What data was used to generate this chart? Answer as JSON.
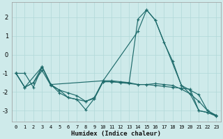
{
  "xlabel": "Humidex (Indice chaleur)",
  "bg_color": "#ceeaea",
  "line_color": "#1e6b6b",
  "grid_color": "#b0d8d8",
  "xlim": [
    -0.5,
    23.5
  ],
  "ylim": [
    -3.6,
    2.8
  ],
  "yticks": [
    -3,
    -2,
    -1,
    0,
    1,
    2
  ],
  "xticks": [
    0,
    1,
    2,
    3,
    4,
    5,
    6,
    7,
    8,
    9,
    10,
    11,
    12,
    13,
    14,
    15,
    16,
    17,
    18,
    19,
    20,
    21,
    22,
    23
  ],
  "series": [
    {
      "x": [
        0,
        1,
        2,
        3,
        4,
        5,
        6,
        7,
        8,
        9,
        10,
        11,
        12,
        13,
        14,
        15,
        16,
        17,
        18,
        19,
        20,
        21,
        22,
        23
      ],
      "y": [
        -1.0,
        -1.75,
        -1.5,
        -0.65,
        -1.6,
        -2.05,
        -2.3,
        -2.4,
        -2.95,
        -2.35,
        -1.45,
        -1.45,
        -1.5,
        -1.55,
        -1.6,
        -1.6,
        -1.65,
        -1.7,
        -1.75,
        -1.8,
        -1.85,
        -3.0,
        -3.1,
        -3.25
      ]
    },
    {
      "x": [
        0,
        1,
        2,
        3,
        4,
        5,
        6,
        7,
        8,
        9,
        10,
        11,
        12,
        13,
        14,
        15,
        16,
        17,
        18,
        19,
        20,
        21,
        22,
        23
      ],
      "y": [
        -1.0,
        -1.75,
        -1.5,
        -0.85,
        -1.65,
        -1.9,
        -2.05,
        -2.2,
        -2.5,
        -2.3,
        -1.4,
        -1.4,
        -1.45,
        -1.5,
        1.9,
        2.4,
        1.85,
        0.65,
        -0.35,
        -1.65,
        -1.9,
        -2.15,
        -3.0,
        -3.3
      ]
    },
    {
      "x": [
        0,
        1,
        3,
        4,
        10,
        14,
        15,
        16,
        19,
        20,
        21,
        22,
        23
      ],
      "y": [
        -1.0,
        -1.75,
        -0.65,
        -1.6,
        -1.4,
        1.25,
        2.4,
        1.85,
        -1.65,
        -2.1,
        -2.5,
        -3.0,
        -3.25
      ]
    },
    {
      "x": [
        0,
        1,
        2,
        3,
        4,
        5,
        6,
        7,
        8,
        9,
        10,
        11,
        12,
        13,
        14,
        15,
        16,
        17,
        18,
        19,
        20,
        21,
        22,
        23
      ],
      "y": [
        -1.0,
        -1.0,
        -1.75,
        -0.65,
        -1.6,
        -1.9,
        -2.3,
        -2.4,
        -2.5,
        -2.35,
        -1.45,
        -1.45,
        -1.5,
        -1.5,
        -1.6,
        -1.6,
        -1.55,
        -1.6,
        -1.65,
        -1.85,
        -2.1,
        -3.0,
        -3.1,
        -3.3
      ]
    }
  ]
}
